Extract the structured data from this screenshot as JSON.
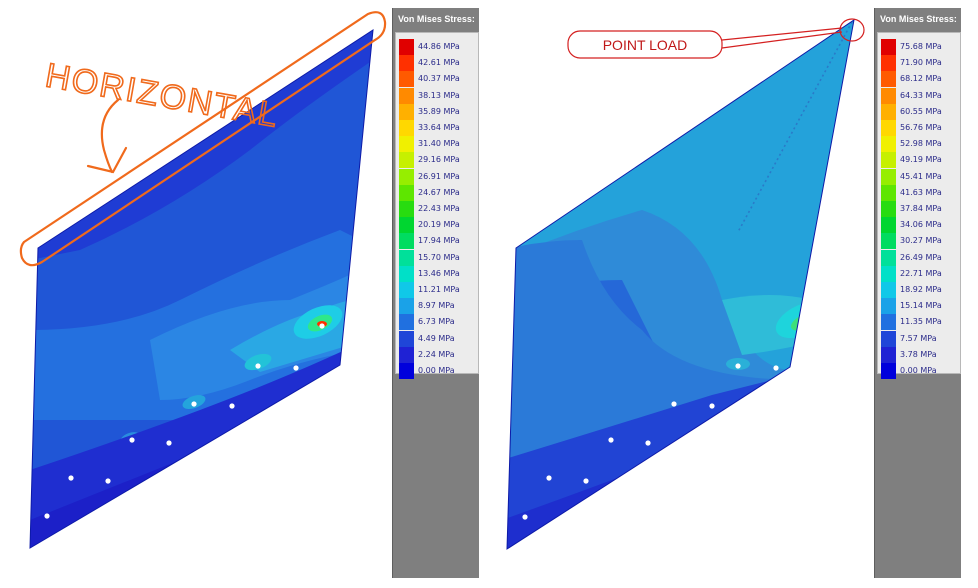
{
  "left": {
    "legend_title": "Von Mises Stress:",
    "annotation": "HORIZONTAL",
    "levels": [
      "44.86 MPa",
      "42.61 MPa",
      "40.37 MPa",
      "38.13 MPa",
      "35.89 MPa",
      "33.64 MPa",
      "31.40 MPa",
      "29.16 MPa",
      "26.91 MPa",
      "24.67 MPa",
      "22.43 MPa",
      "20.19 MPa",
      "17.94 MPa",
      "15.70 MPa",
      "13.46 MPa",
      "11.21 MPa",
      "8.97 MPa",
      "6.73 MPa",
      "4.49 MPa",
      "2.24 MPa",
      "0.00 MPa"
    ]
  },
  "right": {
    "legend_title": "Von Mises Stress:",
    "annotation": "POINT LOAD",
    "levels": [
      "75.68 MPa",
      "71.90 MPa",
      "68.12 MPa",
      "64.33 MPa",
      "60.55 MPa",
      "56.76 MPa",
      "52.98 MPa",
      "49.19 MPa",
      "45.41 MPa",
      "41.63 MPa",
      "37.84 MPa",
      "34.06 MPa",
      "30.27 MPa",
      "26.49 MPa",
      "22.71 MPa",
      "18.92 MPa",
      "15.14 MPa",
      "11.35 MPa",
      "7.57 MPa",
      "3.78 MPa",
      "0.00 MPa"
    ]
  },
  "colors": [
    "#e00000",
    "#ff3000",
    "#ff5a00",
    "#ff8a00",
    "#ffb000",
    "#ffd800",
    "#f0f000",
    "#c6f000",
    "#96ee00",
    "#5ee600",
    "#28dc10",
    "#00d630",
    "#00dc60",
    "#00e09a",
    "#00e0c8",
    "#10c8e8",
    "#1aa2e8",
    "#2070e0",
    "#1f46d8",
    "#1f22d4",
    "#0000dc"
  ]
}
